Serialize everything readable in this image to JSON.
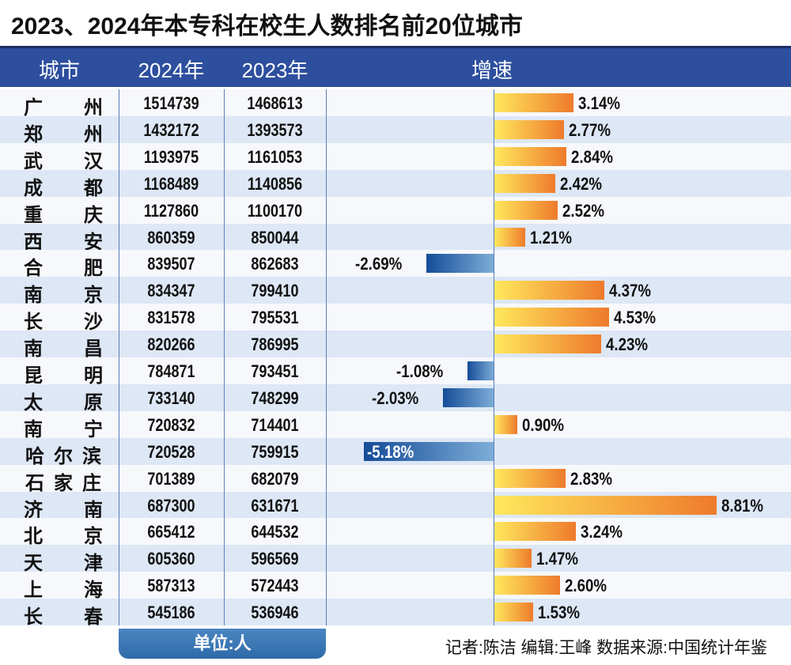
{
  "title": "2023、2024年本专科在校生人数排名前20位城市",
  "headers": {
    "city": "城市",
    "y2024": "2024年",
    "y2023": "2023年",
    "growth": "增速"
  },
  "unit": "单位:人",
  "credits": "记者:陈洁   编辑:王峰   数据来源:中国统计年鉴",
  "colors": {
    "header": "#2d4f9e",
    "row_alt": "#dde7f5",
    "positive_start": "#ffe85c",
    "positive_end": "#ee7a2c",
    "negative_start": "#154c98",
    "negative_end": "#7eaed8"
  },
  "chart_data": {
    "type": "table",
    "columns": [
      "城市",
      "2024年",
      "2023年",
      "增速"
    ],
    "rows": [
      {
        "city": "广州",
        "y2024": "1514739",
        "y2023": "1468613",
        "growth": 3.14,
        "label": "3.14%"
      },
      {
        "city": "郑州",
        "y2024": "1432172",
        "y2023": "1393573",
        "growth": 2.77,
        "label": "2.77%"
      },
      {
        "city": "武汉",
        "y2024": "1193975",
        "y2023": "1161053",
        "growth": 2.84,
        "label": "2.84%"
      },
      {
        "city": "成都",
        "y2024": "1168489",
        "y2023": "1140856",
        "growth": 2.42,
        "label": "2.42%"
      },
      {
        "city": "重庆",
        "y2024": "1127860",
        "y2023": "1100170",
        "growth": 2.52,
        "label": "2.52%"
      },
      {
        "city": "西安",
        "y2024": "860359",
        "y2023": "850044",
        "growth": 1.21,
        "label": "1.21%"
      },
      {
        "city": "合肥",
        "y2024": "839507",
        "y2023": "862683",
        "growth": -2.69,
        "label": "-2.69%"
      },
      {
        "city": "南京",
        "y2024": "834347",
        "y2023": "799410",
        "growth": 4.37,
        "label": "4.37%"
      },
      {
        "city": "长沙",
        "y2024": "831578",
        "y2023": "795531",
        "growth": 4.53,
        "label": "4.53%"
      },
      {
        "city": "南昌",
        "y2024": "820266",
        "y2023": "786995",
        "growth": 4.23,
        "label": "4.23%"
      },
      {
        "city": "昆明",
        "y2024": "784871",
        "y2023": "793451",
        "growth": -1.08,
        "label": "-1.08%"
      },
      {
        "city": "太原",
        "y2024": "733140",
        "y2023": "748299",
        "growth": -2.03,
        "label": "-2.03%"
      },
      {
        "city": "南宁",
        "y2024": "720832",
        "y2023": "714401",
        "growth": 0.9,
        "label": "0.90%"
      },
      {
        "city": "哈尔滨",
        "y2024": "720528",
        "y2023": "759915",
        "growth": -5.18,
        "label": "-5.18%"
      },
      {
        "city": "石家庄",
        "y2024": "701389",
        "y2023": "682079",
        "growth": 2.83,
        "label": "2.83%"
      },
      {
        "city": "济南",
        "y2024": "687300",
        "y2023": "631671",
        "growth": 8.81,
        "label": "8.81%"
      },
      {
        "city": "北京",
        "y2024": "665412",
        "y2023": "644532",
        "growth": 3.24,
        "label": "3.24%"
      },
      {
        "city": "天津",
        "y2024": "605360",
        "y2023": "596569",
        "growth": 1.47,
        "label": "1.47%"
      },
      {
        "city": "上海",
        "y2024": "587313",
        "y2023": "572443",
        "growth": 2.6,
        "label": "2.60%"
      },
      {
        "city": "长春",
        "y2024": "545186",
        "y2023": "536946",
        "growth": 1.53,
        "label": "1.53%"
      }
    ]
  }
}
